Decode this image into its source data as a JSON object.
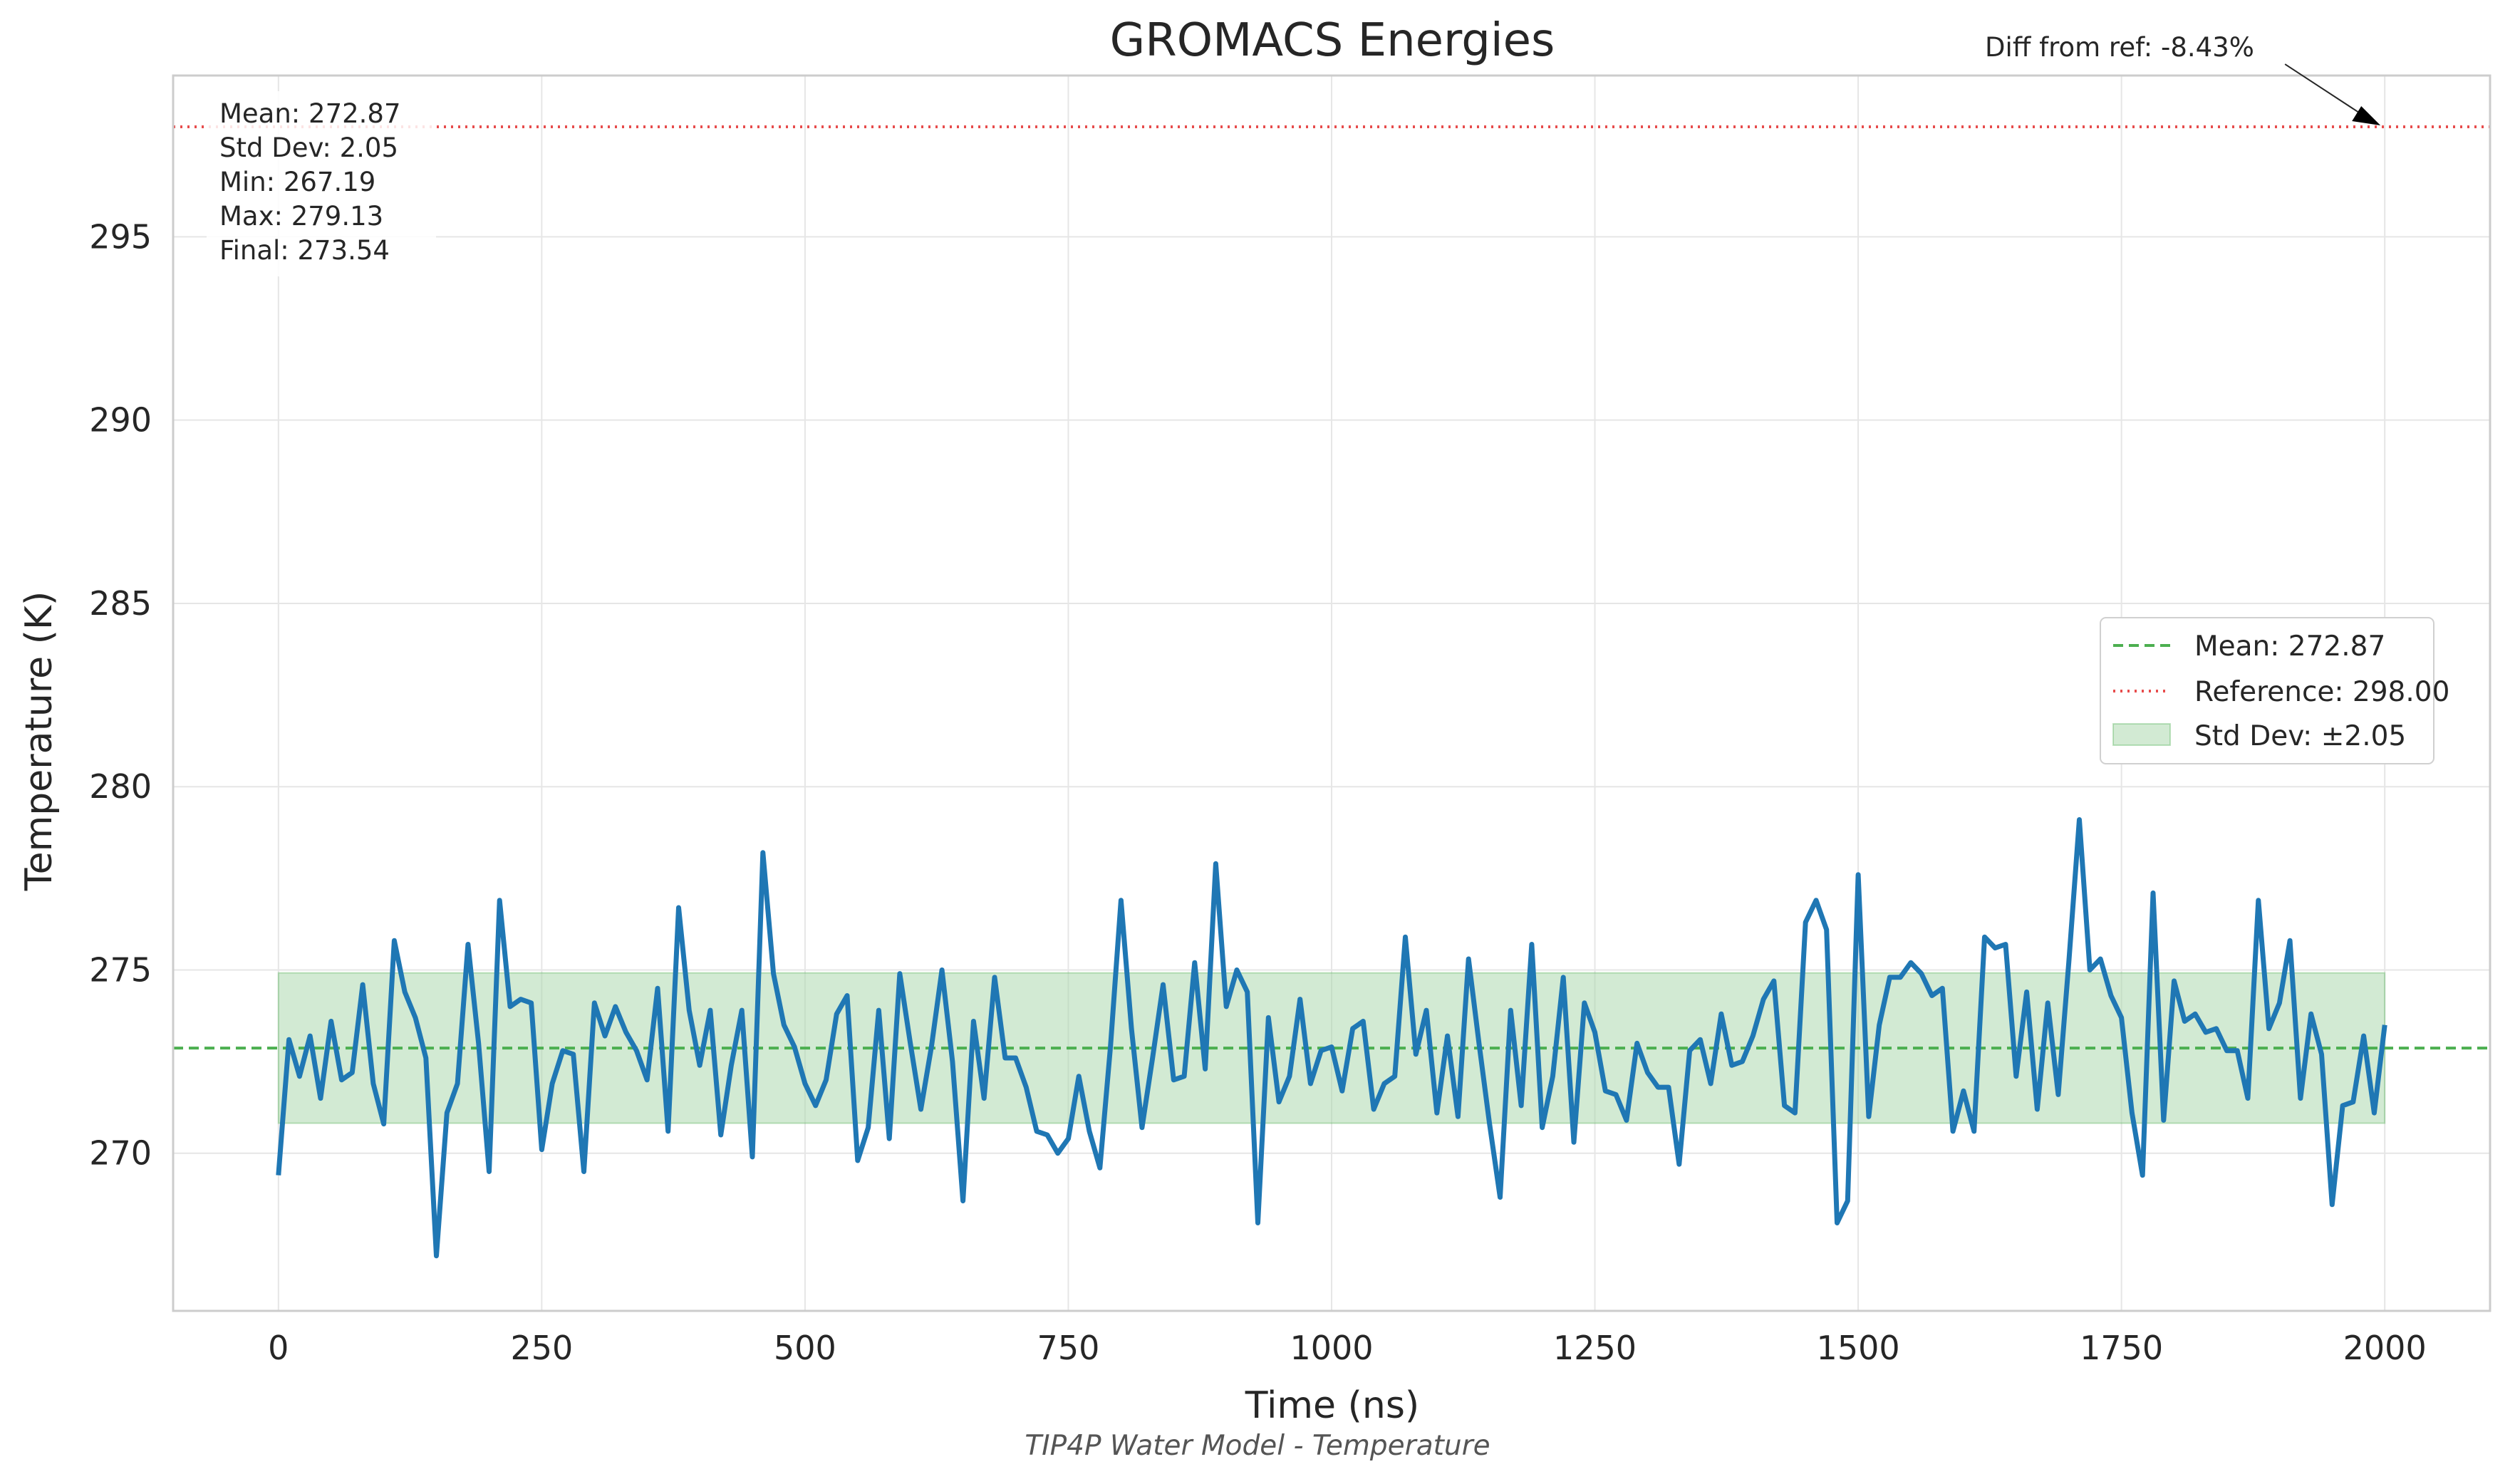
{
  "chart_data": {
    "type": "line",
    "title": "GROMACS Energies",
    "xlabel": "Time (ns)",
    "ylabel": "Temperature (K)",
    "caption": "TIP4P Water Model - Temperature",
    "xlim": [
      -100,
      2100
    ],
    "ylim": [
      265.7,
      299.4
    ],
    "xticks": [
      0,
      250,
      500,
      750,
      1000,
      1250,
      1500,
      1750,
      2000
    ],
    "yticks": [
      270,
      275,
      280,
      285,
      290,
      295
    ],
    "grid": true,
    "legend_position": "center-right",
    "series": [
      {
        "color": "#1f77b4",
        "x": [
          0,
          10,
          20,
          30,
          40,
          50,
          60,
          70,
          80,
          90,
          100,
          110,
          120,
          130,
          140,
          150,
          160,
          170,
          180,
          190,
          200,
          210,
          220,
          230,
          240,
          250,
          260,
          270,
          280,
          290,
          300,
          310,
          320,
          330,
          340,
          350,
          360,
          370,
          380,
          390,
          400,
          410,
          420,
          430,
          440,
          450,
          460,
          470,
          480,
          490,
          500,
          510,
          520,
          530,
          540,
          550,
          560,
          570,
          580,
          590,
          600,
          610,
          620,
          630,
          640,
          650,
          660,
          670,
          680,
          690,
          700,
          710,
          720,
          730,
          740,
          750,
          760,
          770,
          780,
          790,
          800,
          810,
          820,
          830,
          840,
          850,
          860,
          870,
          880,
          890,
          900,
          910,
          920,
          930,
          940,
          950,
          960,
          970,
          980,
          990,
          1000,
          1010,
          1020,
          1030,
          1040,
          1050,
          1060,
          1070,
          1080,
          1090,
          1100,
          1110,
          1120,
          1130,
          1140,
          1150,
          1160,
          1170,
          1180,
          1190,
          1200,
          1210,
          1220,
          1230,
          1240,
          1250,
          1260,
          1270,
          1280,
          1290,
          1300,
          1310,
          1320,
          1330,
          1340,
          1350,
          1360,
          1370,
          1380,
          1390,
          1400,
          1410,
          1420,
          1430,
          1440,
          1450,
          1460,
          1470,
          1480,
          1490,
          1500,
          1510,
          1520,
          1530,
          1540,
          1550,
          1560,
          1570,
          1580,
          1590,
          1600,
          1610,
          1620,
          1630,
          1640,
          1650,
          1660,
          1670,
          1680,
          1690,
          1700,
          1710,
          1720,
          1730,
          1740,
          1750,
          1760,
          1770,
          1780,
          1790,
          1800,
          1810,
          1820,
          1830,
          1840,
          1850,
          1860,
          1870,
          1880,
          1890,
          1900,
          1910,
          1920,
          1930,
          1940,
          1950,
          1960,
          1970,
          1980,
          1990,
          2000
        ],
        "y": [
          269.4,
          273.1,
          272.1,
          273.2,
          271.5,
          273.6,
          272.0,
          272.2,
          274.6,
          271.9,
          270.8,
          275.8,
          274.4,
          273.7,
          272.6,
          267.2,
          271.1,
          271.9,
          275.7,
          273.0,
          269.5,
          276.9,
          274.0,
          274.2,
          274.1,
          270.1,
          271.9,
          272.8,
          272.7,
          269.5,
          274.1,
          273.2,
          274.0,
          273.3,
          272.8,
          272.0,
          274.5,
          270.6,
          276.7,
          273.9,
          272.4,
          273.9,
          270.5,
          272.4,
          273.9,
          269.9,
          278.2,
          274.9,
          273.5,
          272.9,
          271.9,
          271.3,
          272.0,
          273.8,
          274.3,
          269.8,
          270.7,
          273.9,
          270.4,
          274.9,
          273.0,
          271.2,
          272.9,
          275.0,
          272.5,
          268.7,
          273.6,
          271.5,
          274.8,
          272.6,
          272.6,
          271.8,
          270.6,
          270.5,
          270.0,
          270.4,
          272.1,
          270.6,
          269.6,
          272.9,
          276.9,
          273.4,
          270.7,
          272.6,
          274.6,
          272.0,
          272.1,
          275.2,
          272.3,
          277.9,
          274.0,
          275.0,
          274.4,
          268.1,
          273.7,
          271.4,
          272.1,
          274.2,
          271.9,
          272.8,
          272.9,
          271.7,
          273.4,
          273.6,
          271.2,
          271.9,
          272.1,
          275.9,
          272.7,
          273.9,
          271.1,
          273.2,
          271.0,
          275.3,
          273.0,
          270.8,
          268.8,
          273.9,
          271.3,
          275.7,
          270.7,
          272.1,
          274.8,
          270.3,
          274.1,
          273.3,
          271.7,
          271.6,
          270.9,
          273.0,
          272.2,
          271.8,
          271.8,
          269.7,
          272.8,
          273.1,
          271.9,
          273.8,
          272.4,
          272.5,
          273.2,
          274.2,
          274.7,
          271.3,
          271.1,
          276.3,
          276.9,
          276.1,
          268.1,
          268.7,
          277.6,
          271.0,
          273.5,
          274.8,
          274.8,
          275.2,
          274.9,
          274.3,
          274.5,
          270.6,
          271.7,
          270.6,
          275.9,
          275.6,
          275.7,
          272.1,
          274.4,
          271.2,
          274.1,
          271.6,
          275.2,
          279.1,
          275.0,
          275.3,
          274.3,
          273.7,
          271.1,
          269.4,
          277.1,
          270.9,
          274.7,
          273.6,
          273.8,
          273.3,
          273.4,
          272.8,
          272.8,
          271.5,
          276.9,
          273.4,
          274.1,
          275.8,
          271.5,
          273.8,
          272.7,
          268.6,
          271.3,
          271.4,
          273.2,
          271.1,
          273.5
        ]
      }
    ],
    "mean": 272.87,
    "std": 2.05,
    "reference": 298.0,
    "band_range_x": [
      0,
      2000
    ],
    "legend": {
      "mean_label": "Mean: 272.87",
      "reference_label": "Reference: 298.00",
      "std_label": "Std Dev: ±2.05"
    },
    "stats_box": [
      "Mean: 272.87",
      "Std Dev: 2.05",
      "Min: 267.19",
      "Max: 279.13",
      "Final: 273.54"
    ],
    "annotation": {
      "text": "Diff from ref: -8.43%",
      "x": 2000,
      "y": 298.0
    },
    "colors": {
      "line": "#1f77b4",
      "mean": "#4caf50",
      "reference": "#e74c4c",
      "band": "#a5d6a7"
    }
  }
}
